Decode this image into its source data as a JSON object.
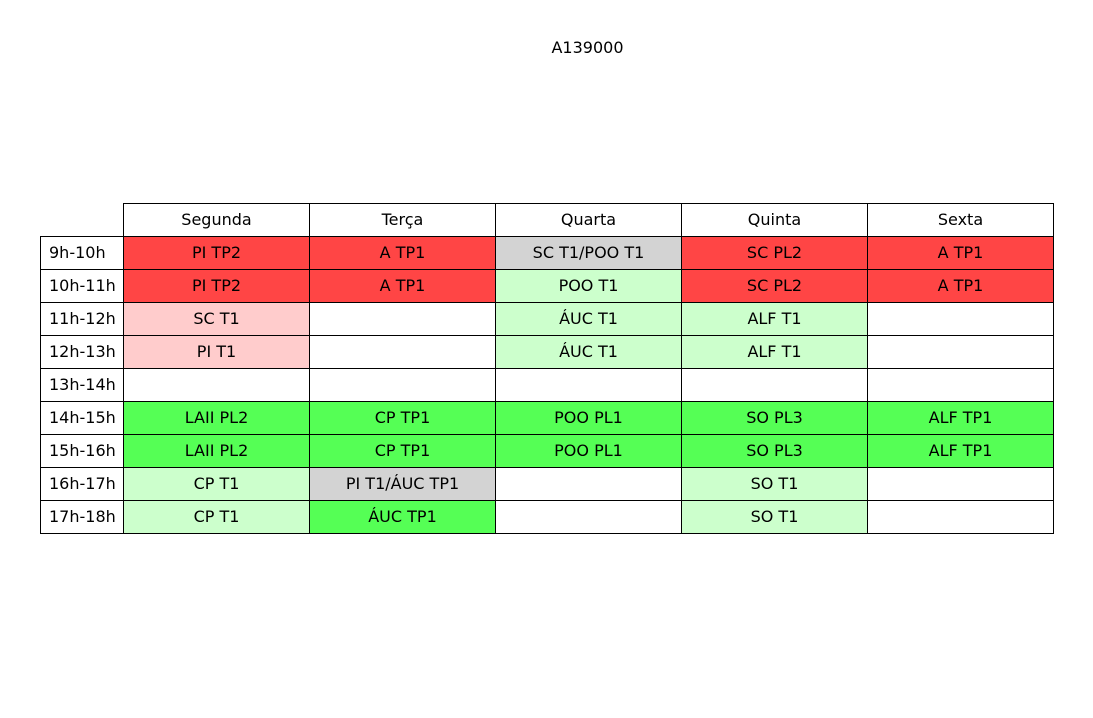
{
  "title": "A139000",
  "colors": {
    "strong_red": "#ff4545",
    "light_red": "#ffcccc",
    "light_green": "#ccffcc",
    "strong_green": "#55ff55",
    "gray": "#d3d3d3",
    "empty": "#ffffff"
  },
  "days": [
    "Segunda",
    "Terça",
    "Quarta",
    "Quinta",
    "Sexta"
  ],
  "rows": [
    {
      "time": "9h-10h",
      "cells": [
        {
          "text": "PI TP2",
          "color": "#ff4545"
        },
        {
          "text": "A TP1",
          "color": "#ff4545"
        },
        {
          "text": "SC T1/POO T1",
          "color": "#d3d3d3"
        },
        {
          "text": "SC PL2",
          "color": "#ff4545"
        },
        {
          "text": "A TP1",
          "color": "#ff4545"
        }
      ]
    },
    {
      "time": "10h-11h",
      "cells": [
        {
          "text": "PI TP2",
          "color": "#ff4545"
        },
        {
          "text": "A TP1",
          "color": "#ff4545"
        },
        {
          "text": "POO T1",
          "color": "#ccffcc"
        },
        {
          "text": "SC PL2",
          "color": "#ff4545"
        },
        {
          "text": "A TP1",
          "color": "#ff4545"
        }
      ]
    },
    {
      "time": "11h-12h",
      "cells": [
        {
          "text": "SC T1",
          "color": "#ffcccc"
        },
        {
          "text": "",
          "color": "#ffffff"
        },
        {
          "text": "ÁUC T1",
          "color": "#ccffcc"
        },
        {
          "text": "ALF T1",
          "color": "#ccffcc"
        },
        {
          "text": "",
          "color": "#ffffff"
        }
      ]
    },
    {
      "time": "12h-13h",
      "cells": [
        {
          "text": "PI T1",
          "color": "#ffcccc"
        },
        {
          "text": "",
          "color": "#ffffff"
        },
        {
          "text": "ÁUC T1",
          "color": "#ccffcc"
        },
        {
          "text": "ALF T1",
          "color": "#ccffcc"
        },
        {
          "text": "",
          "color": "#ffffff"
        }
      ]
    },
    {
      "time": "13h-14h",
      "cells": [
        {
          "text": "",
          "color": "#ffffff"
        },
        {
          "text": "",
          "color": "#ffffff"
        },
        {
          "text": "",
          "color": "#ffffff"
        },
        {
          "text": "",
          "color": "#ffffff"
        },
        {
          "text": "",
          "color": "#ffffff"
        }
      ]
    },
    {
      "time": "14h-15h",
      "cells": [
        {
          "text": "LAII PL2",
          "color": "#55ff55"
        },
        {
          "text": "CP TP1",
          "color": "#55ff55"
        },
        {
          "text": "POO PL1",
          "color": "#55ff55"
        },
        {
          "text": "SO PL3",
          "color": "#55ff55"
        },
        {
          "text": "ALF TP1",
          "color": "#55ff55"
        }
      ]
    },
    {
      "time": "15h-16h",
      "cells": [
        {
          "text": "LAII PL2",
          "color": "#55ff55"
        },
        {
          "text": "CP TP1",
          "color": "#55ff55"
        },
        {
          "text": "POO PL1",
          "color": "#55ff55"
        },
        {
          "text": "SO PL3",
          "color": "#55ff55"
        },
        {
          "text": "ALF TP1",
          "color": "#55ff55"
        }
      ]
    },
    {
      "time": "16h-17h",
      "cells": [
        {
          "text": "CP T1",
          "color": "#ccffcc"
        },
        {
          "text": "PI T1/ÁUC TP1",
          "color": "#d3d3d3"
        },
        {
          "text": "",
          "color": "#ffffff"
        },
        {
          "text": "SO T1",
          "color": "#ccffcc"
        },
        {
          "text": "",
          "color": "#ffffff"
        }
      ]
    },
    {
      "time": "17h-18h",
      "cells": [
        {
          "text": "CP T1",
          "color": "#ccffcc"
        },
        {
          "text": "ÁUC TP1",
          "color": "#55ff55"
        },
        {
          "text": "",
          "color": "#ffffff"
        },
        {
          "text": "SO T1",
          "color": "#ccffcc"
        },
        {
          "text": "",
          "color": "#ffffff"
        }
      ]
    }
  ]
}
